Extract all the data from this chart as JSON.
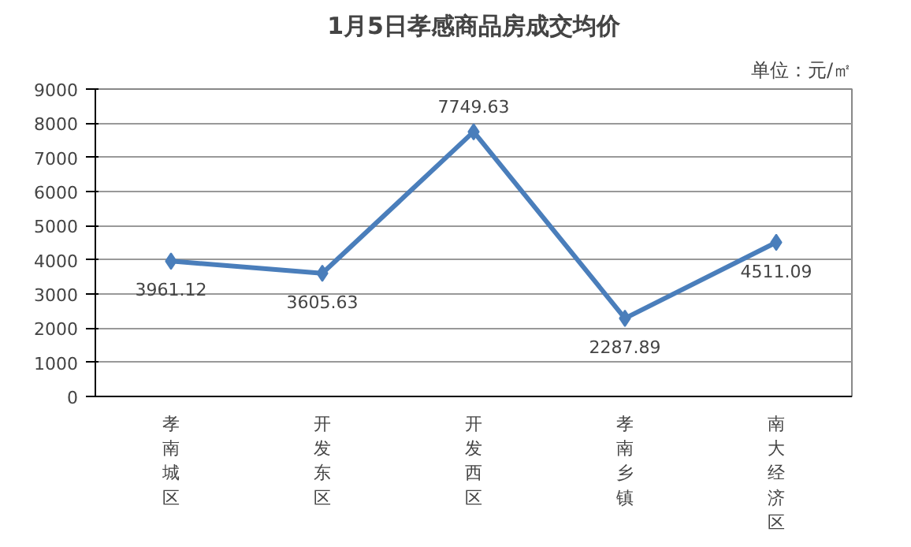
{
  "chart_data": {
    "type": "line",
    "title": "1月5日孝感商品房成交均价",
    "annotations": [
      "单位：元/㎡"
    ],
    "categories": [
      "孝南城区",
      "开发东区",
      "开发西区",
      "孝南乡镇",
      "南大经济区"
    ],
    "series": [
      {
        "color": "#4a7ebb",
        "values": [
          3961.12,
          3605.63,
          7749.63,
          2287.89,
          4511.09
        ]
      }
    ],
    "ylim": [
      0,
      9000
    ],
    "yticks": [
      0,
      1000,
      2000,
      3000,
      4000,
      5000,
      6000,
      7000,
      8000,
      9000
    ],
    "grid": "y",
    "marker": "diamond",
    "data_labels": true
  }
}
